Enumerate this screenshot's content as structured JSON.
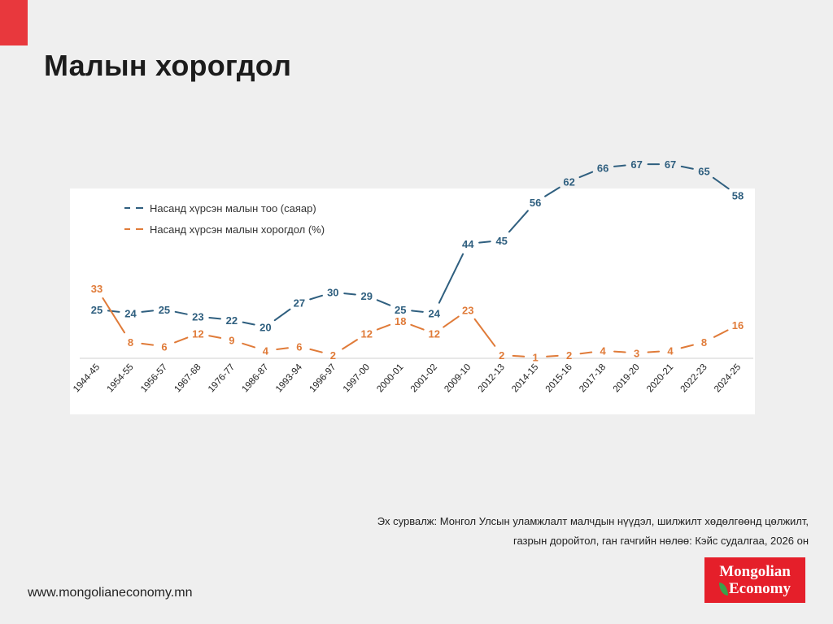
{
  "title": "Малын хорогдол",
  "source": {
    "line1": "Эх сурвалж: Монгол Улсын уламжлалт малчдын нүүдэл, шилжилт хөдөлгөөнд цөлжилт,",
    "line2": "газрын доройтол, ган гачгийн нөлөө: Кэйс судалгаа, 2026 он"
  },
  "website": "www.mongolianeconomy.mn",
  "logo": {
    "line1": "Mongolian",
    "line2": "Economy",
    "icon": "leaf-icon"
  },
  "colors": {
    "accent": "#e8383d",
    "blue": "#2f5f7f",
    "orange": "#e07b39",
    "logo_bg": "#e51f2a"
  },
  "chart_data": {
    "type": "line",
    "legend_position": "top-left",
    "grid": false,
    "categories": [
      "1944-45",
      "1954-55",
      "1956-57",
      "1967-68",
      "1976-77",
      "1986-87",
      "1993-94",
      "1996-97",
      "1997-00",
      "2000-01",
      "2001-02",
      "2009-10",
      "2012-13",
      "2014-15",
      "2015-16",
      "2017-18",
      "2019-20",
      "2020-21",
      "2022-23",
      "2024-25"
    ],
    "series": [
      {
        "name": "Насанд хүрсэн малын тоо (саяар)",
        "color": "#2f5f7f",
        "values": [
          25,
          24,
          25,
          23,
          22,
          20,
          27,
          30,
          29,
          25,
          24,
          44,
          45,
          56,
          62,
          66,
          67,
          67,
          65,
          58
        ]
      },
      {
        "name": "Насанд хүрсэн малын хорогдол (%)",
        "color": "#e07b39",
        "values": [
          33,
          8,
          6,
          12,
          9,
          4,
          6,
          2,
          12,
          18,
          12,
          23,
          2,
          1,
          2,
          4,
          3,
          4,
          8,
          16
        ]
      }
    ]
  }
}
